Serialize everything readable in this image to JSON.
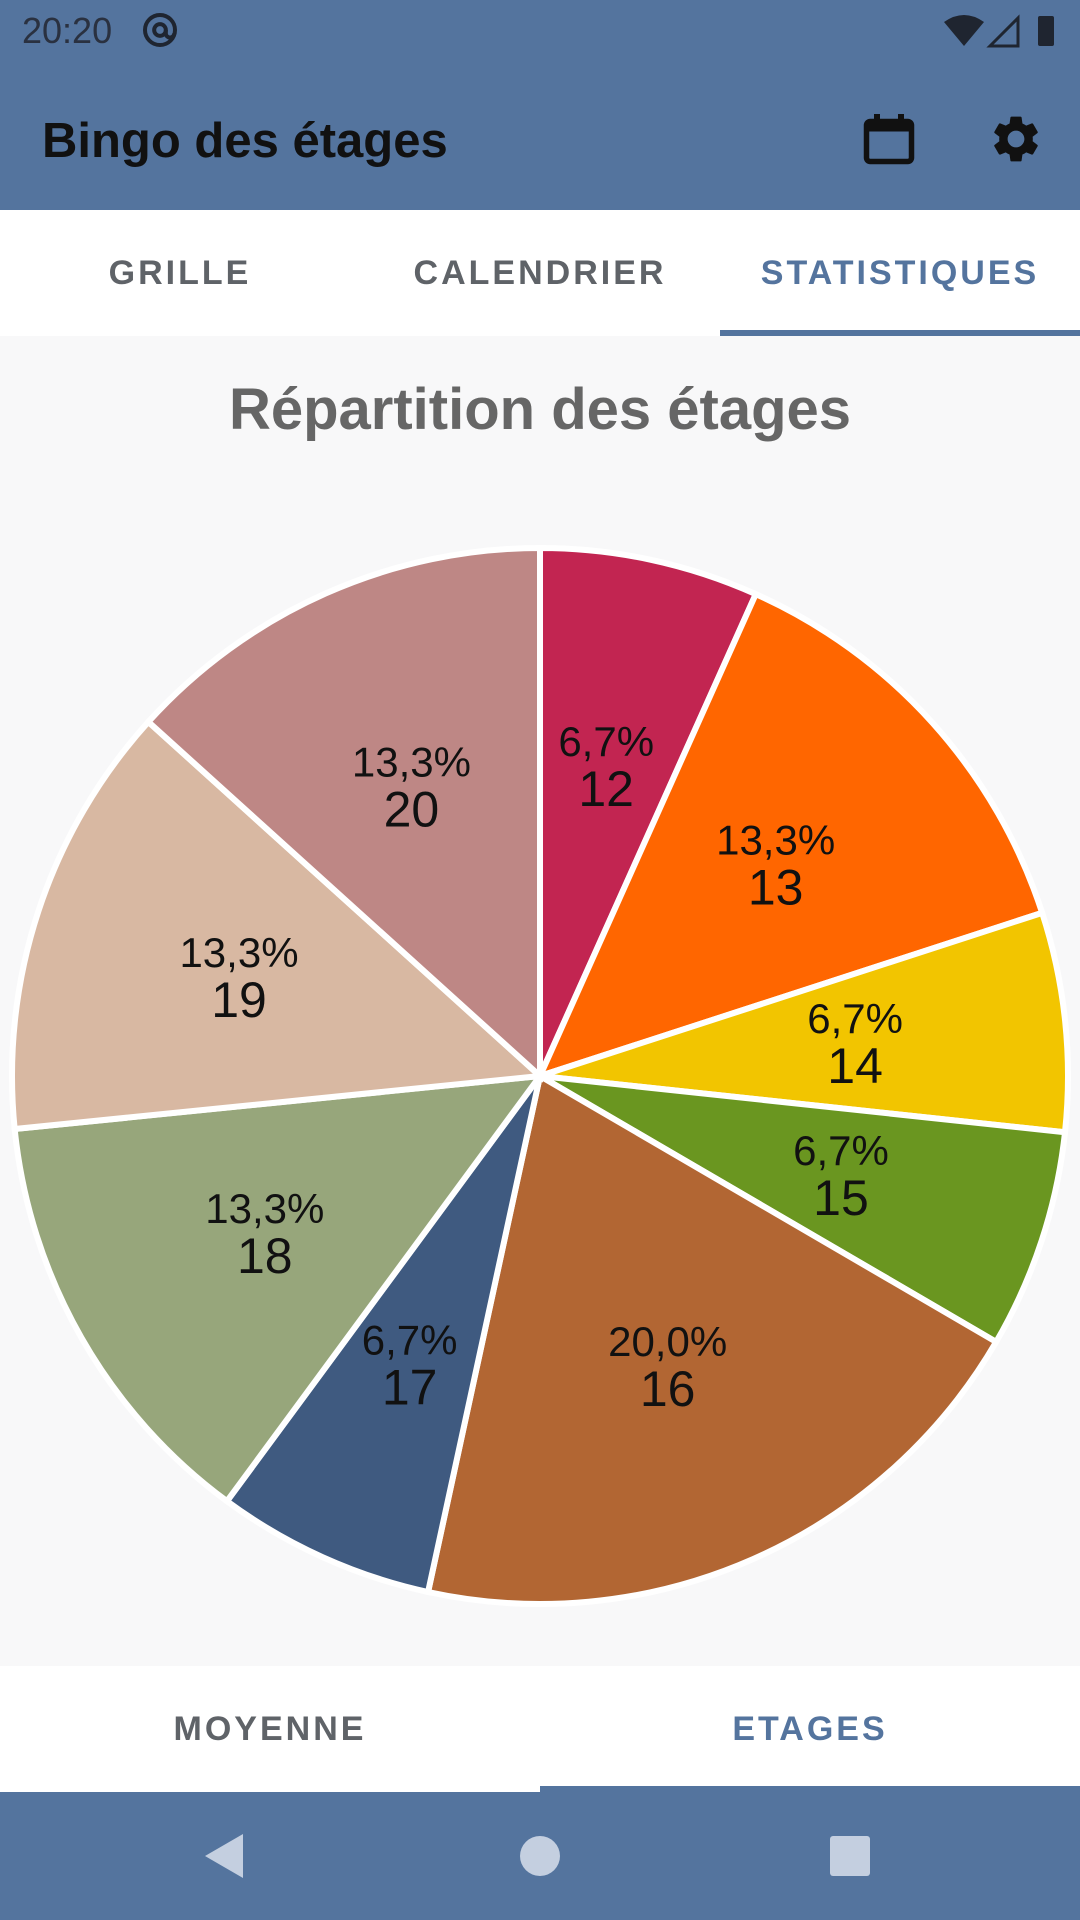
{
  "status_bar": {
    "time": "20:20"
  },
  "app_bar": {
    "title": "Bingo des étages",
    "calendar_icon": "calendar-icon",
    "settings_icon": "gear-icon"
  },
  "tabs": [
    {
      "label": "GRILLE",
      "active": false
    },
    {
      "label": "CALENDRIER",
      "active": false
    },
    {
      "label": "STATISTIQUES",
      "active": true
    }
  ],
  "bottom_tabs": [
    {
      "label": "MOYENNE",
      "active": false
    },
    {
      "label": "ETAGES",
      "active": true
    }
  ],
  "colors": {
    "primary": "#54749e",
    "slices": [
      "#c22551",
      "#ff6600",
      "#f2c500",
      "#6a9620",
      "#b26633",
      "#3f5a80",
      "#97a67b",
      "#d8b8a2",
      "#be8785"
    ]
  },
  "chart_data": {
    "type": "pie",
    "title": "Répartition des étages",
    "categories": [
      "12",
      "13",
      "14",
      "15",
      "16",
      "17",
      "18",
      "19",
      "20"
    ],
    "values": [
      6.7,
      13.3,
      6.7,
      6.7,
      20.0,
      6.7,
      13.3,
      13.3,
      13.3
    ],
    "value_labels": [
      "6,7%",
      "13,3%",
      "6,7%",
      "6,7%",
      "20,0%",
      "6,7%",
      "13,3%",
      "13,3%",
      "13,3%"
    ],
    "legend": "none"
  }
}
